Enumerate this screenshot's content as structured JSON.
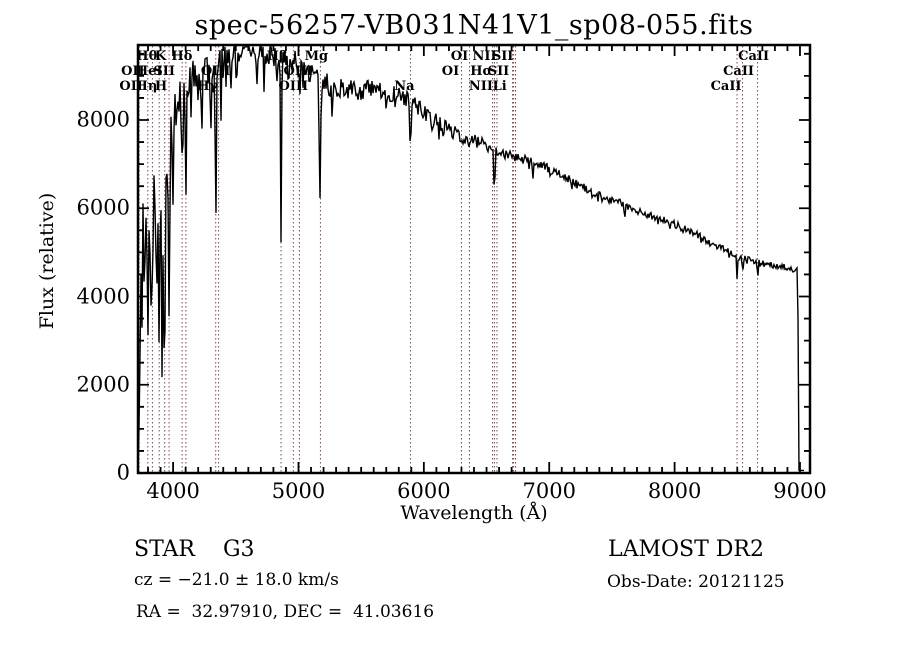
{
  "title": "spec-56257-VB031N41V1_sp08-055.fits",
  "annotations": {
    "class_line": "STAR    G3",
    "cz_line": "cz = −21.0 ± 18.0 km/s",
    "radec_line": "RA =  32.97910, DEC =  41.03616",
    "survey": "LAMOST DR2",
    "obs_date": "Obs-Date: 20121125"
  },
  "chart_data": {
    "type": "line",
    "title": "spec-56257-VB031N41V1_sp08-055.fits",
    "xlabel": "Wavelength (Å)",
    "ylabel": "Flux (relative)",
    "xlim": [
      3720,
      9080
    ],
    "ylim": [
      0,
      9700
    ],
    "x_ticks": [
      4000,
      5000,
      6000,
      7000,
      8000,
      9000
    ],
    "y_ticks": [
      0,
      2000,
      4000,
      6000,
      8000
    ],
    "x_minor_step": 100,
    "y_minor_step": 500,
    "grid": false,
    "legend": "none",
    "line_color": "#000000",
    "marker_line_color": "#7d4646",
    "noise_seed": 7,
    "continuum": [
      [
        3722,
        5000
      ],
      [
        3750,
        5700
      ],
      [
        3790,
        6300
      ],
      [
        3830,
        6600
      ],
      [
        3870,
        6500
      ],
      [
        3910,
        6400
      ],
      [
        3950,
        6700
      ],
      [
        3990,
        7600
      ],
      [
        4030,
        8300
      ],
      [
        4090,
        8750
      ],
      [
        4150,
        8950
      ],
      [
        4250,
        9150
      ],
      [
        4350,
        9300
      ],
      [
        4450,
        9450
      ],
      [
        4550,
        9600
      ],
      [
        4650,
        9600
      ],
      [
        4750,
        9550
      ],
      [
        4850,
        9450
      ],
      [
        4950,
        9350
      ],
      [
        5050,
        9150
      ],
      [
        5150,
        9000
      ],
      [
        5250,
        8800
      ],
      [
        5350,
        8700
      ],
      [
        5450,
        8650
      ],
      [
        5550,
        8700
      ],
      [
        5650,
        8650
      ],
      [
        5750,
        8600
      ],
      [
        5850,
        8500
      ],
      [
        5950,
        8300
      ],
      [
        6050,
        8050
      ],
      [
        6150,
        7900
      ],
      [
        6250,
        7700
      ],
      [
        6350,
        7550
      ],
      [
        6450,
        7500
      ],
      [
        6550,
        7350
      ],
      [
        6650,
        7200
      ],
      [
        6800,
        7100
      ],
      [
        6950,
        6950
      ],
      [
        7100,
        6750
      ],
      [
        7250,
        6500
      ],
      [
        7400,
        6300
      ],
      [
        7550,
        6150
      ],
      [
        7700,
        5950
      ],
      [
        7850,
        5800
      ],
      [
        8000,
        5650
      ],
      [
        8150,
        5450
      ],
      [
        8300,
        5200
      ],
      [
        8450,
        5000
      ],
      [
        8600,
        4850
      ],
      [
        8750,
        4720
      ],
      [
        8900,
        4650
      ],
      [
        9080,
        4550
      ]
    ],
    "absorption_dips": [
      {
        "center": 3735,
        "depth": 3200,
        "width": 6
      },
      {
        "center": 3750,
        "depth": 2200,
        "width": 5
      },
      {
        "center": 3770,
        "depth": 2600,
        "width": 5
      },
      {
        "center": 3798,
        "depth": 3000,
        "width": 6
      },
      {
        "center": 3820,
        "depth": 2300,
        "width": 5
      },
      {
        "center": 3835,
        "depth": 3400,
        "width": 6
      },
      {
        "center": 3860,
        "depth": 2200,
        "width": 5
      },
      {
        "center": 3889,
        "depth": 3600,
        "width": 7
      },
      {
        "center": 3912,
        "depth": 2000,
        "width": 5
      },
      {
        "center": 3933,
        "depth": 4600,
        "width": 7
      },
      {
        "center": 3968,
        "depth": 4300,
        "width": 7
      },
      {
        "center": 4000,
        "depth": 1500,
        "width": 5
      },
      {
        "center": 4026,
        "depth": 1100,
        "width": 4
      },
      {
        "center": 4072,
        "depth": 1500,
        "width": 5
      },
      {
        "center": 4101,
        "depth": 2400,
        "width": 6
      },
      {
        "center": 4144,
        "depth": 1100,
        "width": 4
      },
      {
        "center": 4226,
        "depth": 1500,
        "width": 5
      },
      {
        "center": 4300,
        "depth": 1800,
        "width": 7
      },
      {
        "center": 4340,
        "depth": 3900,
        "width": 6
      },
      {
        "center": 4383,
        "depth": 1400,
        "width": 4
      },
      {
        "center": 4457,
        "depth": 900,
        "width": 4
      },
      {
        "center": 4530,
        "depth": 900,
        "width": 4
      },
      {
        "center": 4668,
        "depth": 800,
        "width": 4
      },
      {
        "center": 4861,
        "depth": 4400,
        "width": 6
      },
      {
        "center": 4920,
        "depth": 900,
        "width": 4
      },
      {
        "center": 5015,
        "depth": 800,
        "width": 4
      },
      {
        "center": 5170,
        "depth": 2200,
        "width": 9
      },
      {
        "center": 5270,
        "depth": 1000,
        "width": 5
      },
      {
        "center": 5893,
        "depth": 1250,
        "width": 7
      },
      {
        "center": 6122,
        "depth": 400,
        "width": 4
      },
      {
        "center": 6563,
        "depth": 1750,
        "width": 4
      },
      {
        "center": 6870,
        "depth": 350,
        "width": 5
      },
      {
        "center": 7180,
        "depth": 250,
        "width": 6
      },
      {
        "center": 7600,
        "depth": 300,
        "width": 6
      },
      {
        "center": 8498,
        "depth": 560,
        "width": 4
      },
      {
        "center": 8542,
        "depth": 660,
        "width": 4
      },
      {
        "center": 8662,
        "depth": 520,
        "width": 4
      }
    ],
    "noise_profile": [
      [
        3720,
        1050
      ],
      [
        3950,
        850
      ],
      [
        4050,
        430
      ],
      [
        4300,
        380
      ],
      [
        4700,
        330
      ],
      [
        5200,
        260
      ],
      [
        5800,
        200
      ],
      [
        6300,
        150
      ],
      [
        6800,
        110
      ],
      [
        7400,
        90
      ],
      [
        8200,
        75
      ],
      [
        9080,
        70
      ]
    ],
    "downspike_profile": [
      [
        3720,
        2400
      ],
      [
        4050,
        1500
      ],
      [
        4400,
        950
      ],
      [
        4900,
        520
      ],
      [
        5400,
        330
      ],
      [
        6000,
        160
      ],
      [
        6800,
        120
      ],
      [
        9080,
        100
      ]
    ],
    "downspike_prob": 0.3,
    "left_edge": {
      "flux": 60
    },
    "right_drop": {
      "start": 8982,
      "span": 10,
      "floor": 60,
      "end": 9040
    },
    "spectral_lines": [
      {
        "label": "OII",
        "wavelength": 3727,
        "row": 2,
        "dx": -6
      },
      {
        "label": "OII",
        "wavelength": 3729,
        "row": 3,
        "dx": -8
      },
      {
        "label": "Hθ",
        "wavelength": 3798,
        "row": 1,
        "dx": -1
      },
      {
        "label": "Hη",
        "wavelength": 3835,
        "row": 3,
        "dx": -6
      },
      {
        "label": "HeI",
        "wavelength": 3889,
        "row": 2,
        "dx": -10
      },
      {
        "label": "K",
        "wavelength": 3933,
        "row": 1,
        "dx": -4
      },
      {
        "label": "H",
        "wavelength": 3968,
        "row": 3,
        "dx": -8
      },
      {
        "label": "SII",
        "wavelength": 4072,
        "row": 2,
        "dx": -18
      },
      {
        "label": "Hδ",
        "wavelength": 4102,
        "row": 1,
        "dx": -4
      },
      {
        "label": "Hγ",
        "wavelength": 4340,
        "row": 3,
        "dx": -8
      },
      {
        "label": "OIII",
        "wavelength": 4363,
        "row": 2,
        "dx": -3
      },
      {
        "label": "Hβ",
        "wavelength": 4861,
        "row": 1,
        "dx": -4
      },
      {
        "label": "OIII",
        "wavelength": 4959,
        "row": 2,
        "dx": 5
      },
      {
        "label": "OIII",
        "wavelength": 5007,
        "row": 3,
        "dx": -6
      },
      {
        "label": "Mg",
        "wavelength": 5175,
        "row": 1,
        "dx": -4
      },
      {
        "label": "Na",
        "wavelength": 5893,
        "row": 3,
        "dx": -6
      },
      {
        "label": "OI",
        "wavelength": 6300,
        "row": 1,
        "dx": -2
      },
      {
        "label": "OI",
        "wavelength": 6364,
        "row": 2,
        "dx": -19
      },
      {
        "label": "NII",
        "wavelength": 6548,
        "row": 1,
        "dx": -8
      },
      {
        "label": "Hα",
        "wavelength": 6563,
        "row": 2,
        "dx": -13
      },
      {
        "label": "NII",
        "wavelength": 6583,
        "row": 3,
        "dx": -16
      },
      {
        "label": "Li",
        "wavelength": 6708,
        "row": 3,
        "dx": -13
      },
      {
        "label": "SII",
        "wavelength": 6716,
        "row": 1,
        "dx": -11
      },
      {
        "label": "SII",
        "wavelength": 6731,
        "row": 2,
        "dx": -17
      },
      {
        "label": "CaII",
        "wavelength": 8498,
        "row": 3,
        "dx": -11
      },
      {
        "label": "CaII",
        "wavelength": 8542,
        "row": 2,
        "dx": -4
      },
      {
        "label": "CaII",
        "wavelength": 8662,
        "row": 1,
        "dx": -4
      }
    ]
  }
}
